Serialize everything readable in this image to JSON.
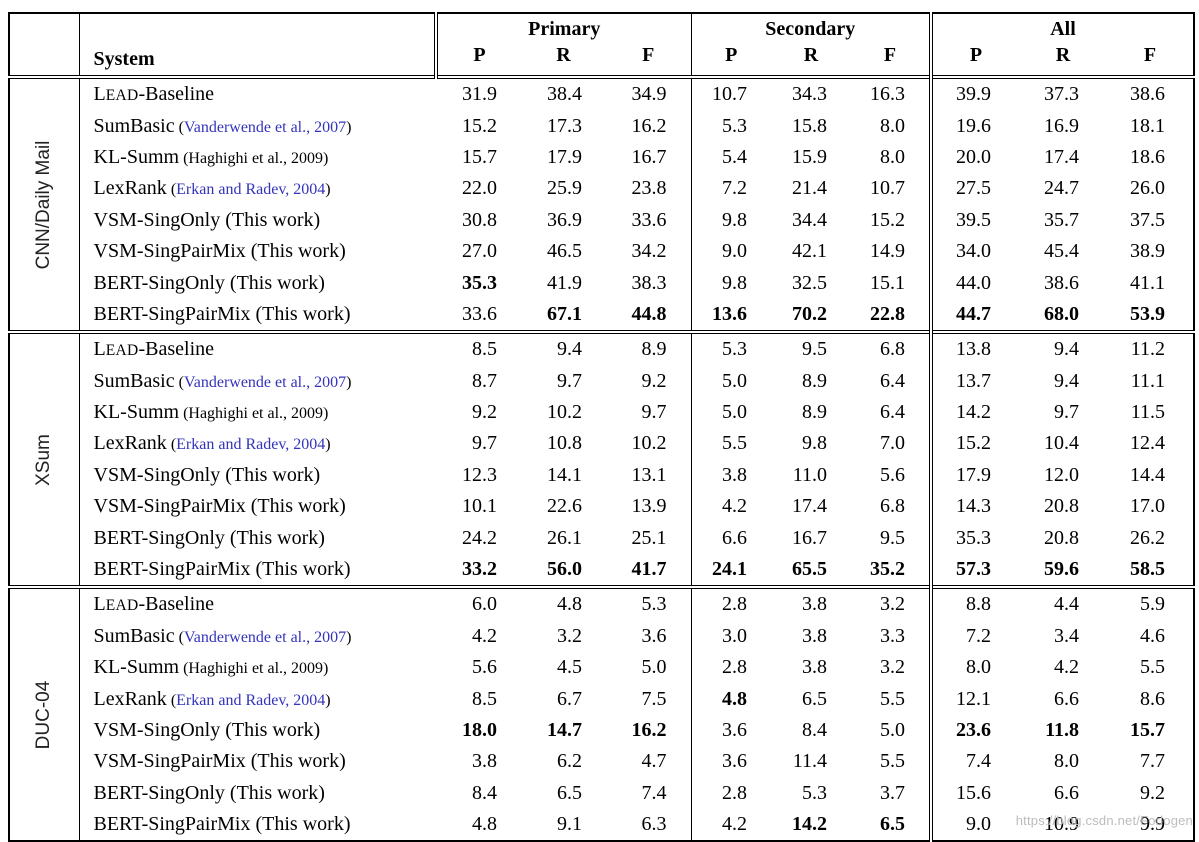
{
  "page": {
    "watermark": "https://blog.csdn.net/Forlogen"
  },
  "colors": {
    "citation_link": "#3333bb",
    "watermark_gray": "#bcbcbc",
    "text": "#000000"
  },
  "header": {
    "system": "System",
    "groups": [
      "Primary",
      "Secondary",
      "All"
    ],
    "metrics": [
      "P",
      "R",
      "F"
    ]
  },
  "chart_data": {
    "type": "table",
    "title": "",
    "column_groups": [
      "Primary",
      "Secondary",
      "All"
    ],
    "metrics_per_group": [
      "P",
      "R",
      "F"
    ]
  },
  "sections": [
    {
      "dataset": "CNN/Daily Mail",
      "rows": [
        {
          "parts": [
            {
              "t": "L"
            },
            {
              "t": "EAD",
              "sc": true
            },
            {
              "t": "-Baseline"
            }
          ],
          "cite": null,
          "values": [
            "31.9",
            "38.4",
            "34.9",
            "10.7",
            "34.3",
            "16.3",
            "39.9",
            "37.3",
            "38.6"
          ],
          "bold": []
        },
        {
          "parts": [
            {
              "t": "SumBasic"
            }
          ],
          "cite": {
            "text": "Vanderwende et al., 2007",
            "blue": true,
            "small": true
          },
          "values": [
            "15.2",
            "17.3",
            "16.2",
            "5.3",
            "15.8",
            "8.0",
            "19.6",
            "16.9",
            "18.1"
          ],
          "bold": []
        },
        {
          "parts": [
            {
              "t": "KL-Summ"
            }
          ],
          "cite": {
            "text": "Haghighi et al., 2009",
            "blue": false,
            "small": true
          },
          "values": [
            "15.7",
            "17.9",
            "16.7",
            "5.4",
            "15.9",
            "8.0",
            "20.0",
            "17.4",
            "18.6"
          ],
          "bold": []
        },
        {
          "parts": [
            {
              "t": "LexRank"
            }
          ],
          "cite": {
            "text": "Erkan and Radev, 2004",
            "blue": true,
            "small": true
          },
          "values": [
            "22.0",
            "25.9",
            "23.8",
            "7.2",
            "21.4",
            "10.7",
            "27.5",
            "24.7",
            "26.0"
          ],
          "bold": []
        },
        {
          "parts": [
            {
              "t": "VSM-SingOnly"
            }
          ],
          "cite": {
            "text": "This work",
            "blue": false,
            "small": false
          },
          "values": [
            "30.8",
            "36.9",
            "33.6",
            "9.8",
            "34.4",
            "15.2",
            "39.5",
            "35.7",
            "37.5"
          ],
          "bold": []
        },
        {
          "parts": [
            {
              "t": "VSM-SingPairMix"
            }
          ],
          "cite": {
            "text": "This work",
            "blue": false,
            "small": false
          },
          "values": [
            "27.0",
            "46.5",
            "34.2",
            "9.0",
            "42.1",
            "14.9",
            "34.0",
            "45.4",
            "38.9"
          ],
          "bold": []
        },
        {
          "parts": [
            {
              "t": "BERT-SingOnly"
            }
          ],
          "cite": {
            "text": "This work",
            "blue": false,
            "small": false
          },
          "values": [
            "35.3",
            "41.9",
            "38.3",
            "9.8",
            "32.5",
            "15.1",
            "44.0",
            "38.6",
            "41.1"
          ],
          "bold": [
            0
          ]
        },
        {
          "parts": [
            {
              "t": "BERT-SingPairMix"
            }
          ],
          "cite": {
            "text": "This work",
            "blue": false,
            "small": false
          },
          "values": [
            "33.6",
            "67.1",
            "44.8",
            "13.6",
            "70.2",
            "22.8",
            "44.7",
            "68.0",
            "53.9"
          ],
          "bold": [
            1,
            2,
            3,
            4,
            5,
            6,
            7,
            8
          ]
        }
      ]
    },
    {
      "dataset": "XSum",
      "rows": [
        {
          "parts": [
            {
              "t": "L"
            },
            {
              "t": "EAD",
              "sc": true
            },
            {
              "t": "-Baseline"
            }
          ],
          "cite": null,
          "values": [
            "8.5",
            "9.4",
            "8.9",
            "5.3",
            "9.5",
            "6.8",
            "13.8",
            "9.4",
            "11.2"
          ],
          "bold": []
        },
        {
          "parts": [
            {
              "t": "SumBasic"
            }
          ],
          "cite": {
            "text": "Vanderwende et al., 2007",
            "blue": true,
            "small": true
          },
          "values": [
            "8.7",
            "9.7",
            "9.2",
            "5.0",
            "8.9",
            "6.4",
            "13.7",
            "9.4",
            "11.1"
          ],
          "bold": []
        },
        {
          "parts": [
            {
              "t": "KL-Summ"
            }
          ],
          "cite": {
            "text": "Haghighi et al., 2009",
            "blue": false,
            "small": true
          },
          "values": [
            "9.2",
            "10.2",
            "9.7",
            "5.0",
            "8.9",
            "6.4",
            "14.2",
            "9.7",
            "11.5"
          ],
          "bold": []
        },
        {
          "parts": [
            {
              "t": "LexRank"
            }
          ],
          "cite": {
            "text": "Erkan and Radev, 2004",
            "blue": true,
            "small": true
          },
          "values": [
            "9.7",
            "10.8",
            "10.2",
            "5.5",
            "9.8",
            "7.0",
            "15.2",
            "10.4",
            "12.4"
          ],
          "bold": []
        },
        {
          "parts": [
            {
              "t": "VSM-SingOnly"
            }
          ],
          "cite": {
            "text": "This work",
            "blue": false,
            "small": false
          },
          "values": [
            "12.3",
            "14.1",
            "13.1",
            "3.8",
            "11.0",
            "5.6",
            "17.9",
            "12.0",
            "14.4"
          ],
          "bold": []
        },
        {
          "parts": [
            {
              "t": "VSM-SingPairMix"
            }
          ],
          "cite": {
            "text": "This work",
            "blue": false,
            "small": false
          },
          "values": [
            "10.1",
            "22.6",
            "13.9",
            "4.2",
            "17.4",
            "6.8",
            "14.3",
            "20.8",
            "17.0"
          ],
          "bold": []
        },
        {
          "parts": [
            {
              "t": "BERT-SingOnly"
            }
          ],
          "cite": {
            "text": "This work",
            "blue": false,
            "small": false
          },
          "values": [
            "24.2",
            "26.1",
            "25.1",
            "6.6",
            "16.7",
            "9.5",
            "35.3",
            "20.8",
            "26.2"
          ],
          "bold": []
        },
        {
          "parts": [
            {
              "t": "BERT-SingPairMix"
            }
          ],
          "cite": {
            "text": "This work",
            "blue": false,
            "small": false
          },
          "values": [
            "33.2",
            "56.0",
            "41.7",
            "24.1",
            "65.5",
            "35.2",
            "57.3",
            "59.6",
            "58.5"
          ],
          "bold": [
            0,
            1,
            2,
            3,
            4,
            5,
            6,
            7,
            8
          ]
        }
      ]
    },
    {
      "dataset": "DUC-04",
      "rows": [
        {
          "parts": [
            {
              "t": "L"
            },
            {
              "t": "EAD",
              "sc": true
            },
            {
              "t": "-Baseline"
            }
          ],
          "cite": null,
          "values": [
            "6.0",
            "4.8",
            "5.3",
            "2.8",
            "3.8",
            "3.2",
            "8.8",
            "4.4",
            "5.9"
          ],
          "bold": []
        },
        {
          "parts": [
            {
              "t": "SumBasic"
            }
          ],
          "cite": {
            "text": "Vanderwende et al., 2007",
            "blue": true,
            "small": true
          },
          "values": [
            "4.2",
            "3.2",
            "3.6",
            "3.0",
            "3.8",
            "3.3",
            "7.2",
            "3.4",
            "4.6"
          ],
          "bold": []
        },
        {
          "parts": [
            {
              "t": "KL-Summ"
            }
          ],
          "cite": {
            "text": "Haghighi et al., 2009",
            "blue": false,
            "small": true
          },
          "values": [
            "5.6",
            "4.5",
            "5.0",
            "2.8",
            "3.8",
            "3.2",
            "8.0",
            "4.2",
            "5.5"
          ],
          "bold": []
        },
        {
          "parts": [
            {
              "t": "LexRank"
            }
          ],
          "cite": {
            "text": "Erkan and Radev, 2004",
            "blue": true,
            "small": true
          },
          "values": [
            "8.5",
            "6.7",
            "7.5",
            "4.8",
            "6.5",
            "5.5",
            "12.1",
            "6.6",
            "8.6"
          ],
          "bold": [
            3
          ]
        },
        {
          "parts": [
            {
              "t": "VSM-SingOnly"
            }
          ],
          "cite": {
            "text": "This work",
            "blue": false,
            "small": false
          },
          "values": [
            "18.0",
            "14.7",
            "16.2",
            "3.6",
            "8.4",
            "5.0",
            "23.6",
            "11.8",
            "15.7"
          ],
          "bold": [
            0,
            1,
            2,
            6,
            7,
            8
          ]
        },
        {
          "parts": [
            {
              "t": "VSM-SingPairMix"
            }
          ],
          "cite": {
            "text": "This work",
            "blue": false,
            "small": false
          },
          "values": [
            "3.8",
            "6.2",
            "4.7",
            "3.6",
            "11.4",
            "5.5",
            "7.4",
            "8.0",
            "7.7"
          ],
          "bold": []
        },
        {
          "parts": [
            {
              "t": "BERT-SingOnly"
            }
          ],
          "cite": {
            "text": "This work",
            "blue": false,
            "small": false
          },
          "values": [
            "8.4",
            "6.5",
            "7.4",
            "2.8",
            "5.3",
            "3.7",
            "15.6",
            "6.6",
            "9.2"
          ],
          "bold": []
        },
        {
          "parts": [
            {
              "t": "BERT-SingPairMix"
            }
          ],
          "cite": {
            "text": "This work",
            "blue": false,
            "small": false
          },
          "values": [
            "4.8",
            "9.1",
            "6.3",
            "4.2",
            "14.2",
            "6.5",
            "9.0",
            "10.9",
            "9.9"
          ],
          "bold": [
            4,
            5
          ]
        }
      ]
    }
  ]
}
